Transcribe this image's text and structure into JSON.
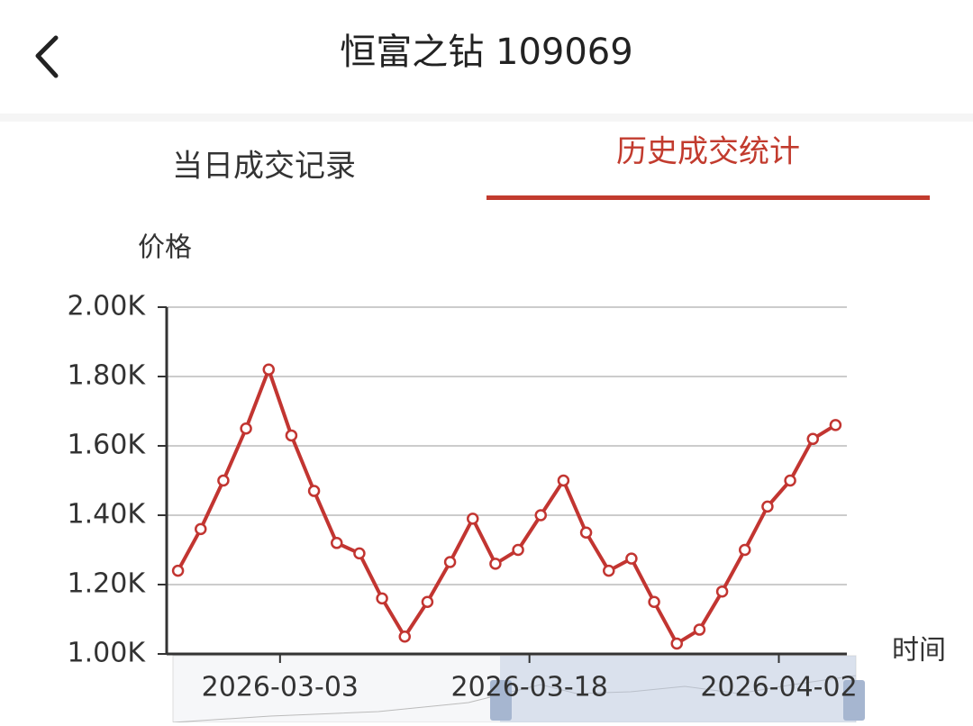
{
  "header": {
    "title": "恒富之钻 109069"
  },
  "tabs": [
    "当日成交记录",
    "历史成交统计"
  ],
  "chart_data": {
    "type": "line",
    "y_axis_label": "价格",
    "x_axis_label": "时间",
    "categories": [
      null,
      null,
      null,
      null,
      null,
      "2026-03-03",
      null,
      null,
      null,
      null,
      null,
      null,
      null,
      null,
      null,
      null,
      "2026-03-18",
      null,
      null,
      null,
      null,
      null,
      null,
      null,
      null,
      null,
      null,
      "2026-04-02",
      null,
      null
    ],
    "series": [
      {
        "color": "#c23531",
        "values": [
          1240,
          1360,
          1500,
          1650,
          1820,
          1630,
          1470,
          1320,
          1290,
          1160,
          1050,
          1150,
          1265,
          1390,
          1260,
          1300,
          1400,
          1500,
          1350,
          1240,
          1275,
          1150,
          1030,
          1070,
          1180,
          1300,
          1425,
          1500,
          1620,
          1660
        ]
      }
    ],
    "ylim": [
      1000,
      2000
    ],
    "yticks": [
      {
        "value": 1000,
        "label": "1.00K"
      },
      {
        "value": 1200,
        "label": "1.20K"
      },
      {
        "value": 1400,
        "label": "1.40K"
      },
      {
        "value": 1600,
        "label": "1.60K"
      },
      {
        "value": 1800,
        "label": "1.80K"
      },
      {
        "value": 2000,
        "label": "2.00K"
      }
    ],
    "grid": true
  }
}
